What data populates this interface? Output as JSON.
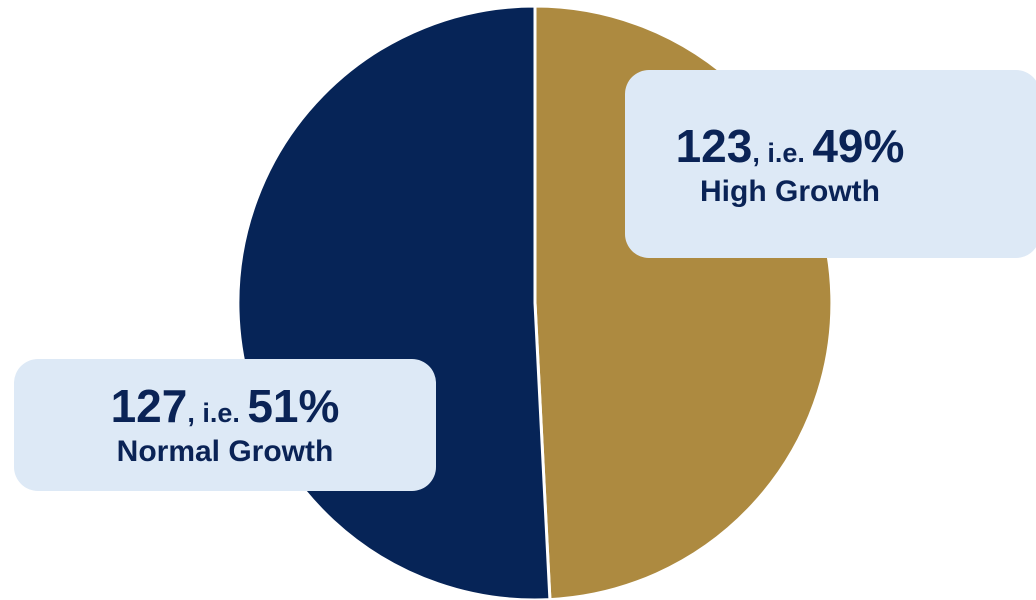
{
  "chart_data": {
    "type": "pie",
    "slices": [
      {
        "count": 123,
        "percent": 49,
        "label": "High Growth",
        "color": "#ad8a40"
      },
      {
        "count": 127,
        "percent": 51,
        "label": "Normal Growth",
        "color": "#062457"
      }
    ],
    "separator": ", i.e. ",
    "percent_suffix": "%"
  },
  "colors": {
    "callout_background": "#dde9f6",
    "label_text": "#0a2356"
  }
}
